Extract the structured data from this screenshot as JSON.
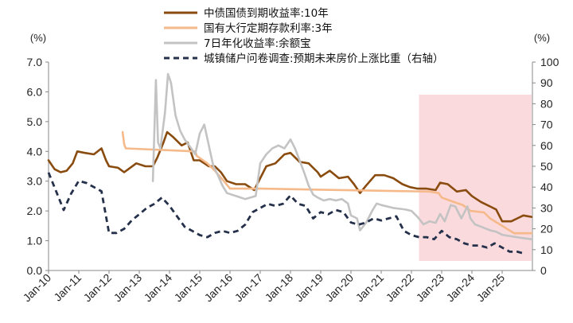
{
  "chart_data": {
    "type": "line",
    "title": "",
    "y_unit_left": "(%)",
    "y_unit_right": "(%)",
    "ylim_left": [
      0,
      7
    ],
    "ylim_right": [
      0,
      100
    ],
    "yticks_left": [
      "0.0",
      "1.0",
      "2.0",
      "3.0",
      "4.0",
      "5.0",
      "6.0",
      "7.0"
    ],
    "yticks_right": [
      "0",
      "10",
      "20",
      "30",
      "40",
      "50",
      "60",
      "70",
      "80",
      "90",
      "100"
    ],
    "x_ticks": [
      "Jan-10",
      "Jan-11",
      "Jan-12",
      "Jan-13",
      "Jan-14",
      "Jan-15",
      "Jan-16",
      "Jan-17",
      "Jan-18",
      "Jan-19",
      "Jan-20",
      "Jan-21",
      "Jan-22",
      "Jan-23",
      "Jan-24",
      "Jan-25"
    ],
    "legend_position": "top-center",
    "shaded_region": {
      "from": 2022.25,
      "to": 2025.97,
      "color": "#fbdadd"
    },
    "series": [
      {
        "name": "中债国债到期收益率:10年",
        "axis": "left",
        "color": "#8a4b0f",
        "style": "solid",
        "points": [
          [
            2010.0,
            3.7
          ],
          [
            2010.2,
            3.4
          ],
          [
            2010.4,
            3.3
          ],
          [
            2010.6,
            3.35
          ],
          [
            2010.8,
            3.6
          ],
          [
            2010.95,
            4.0
          ],
          [
            2011.2,
            3.95
          ],
          [
            2011.5,
            3.9
          ],
          [
            2011.75,
            4.1
          ],
          [
            2011.9,
            3.7
          ],
          [
            2012.0,
            3.5
          ],
          [
            2012.3,
            3.45
          ],
          [
            2012.5,
            3.3
          ],
          [
            2012.7,
            3.45
          ],
          [
            2012.9,
            3.6
          ],
          [
            2013.2,
            3.5
          ],
          [
            2013.45,
            3.5
          ],
          [
            2013.6,
            3.8
          ],
          [
            2013.8,
            4.3
          ],
          [
            2013.92,
            4.65
          ],
          [
            2014.1,
            4.5
          ],
          [
            2014.4,
            4.2
          ],
          [
            2014.6,
            4.3
          ],
          [
            2014.8,
            3.7
          ],
          [
            2015.0,
            3.7
          ],
          [
            2015.3,
            3.5
          ],
          [
            2015.5,
            3.5
          ],
          [
            2015.7,
            3.3
          ],
          [
            2015.9,
            3.0
          ],
          [
            2016.2,
            2.9
          ],
          [
            2016.5,
            2.9
          ],
          [
            2016.8,
            2.7
          ],
          [
            2017.0,
            3.1
          ],
          [
            2017.2,
            3.5
          ],
          [
            2017.5,
            3.6
          ],
          [
            2017.8,
            3.9
          ],
          [
            2018.0,
            3.95
          ],
          [
            2018.3,
            3.65
          ],
          [
            2018.6,
            3.6
          ],
          [
            2018.9,
            3.3
          ],
          [
            2019.0,
            3.15
          ],
          [
            2019.3,
            3.35
          ],
          [
            2019.6,
            3.1
          ],
          [
            2019.9,
            3.15
          ],
          [
            2020.1,
            2.9
          ],
          [
            2020.3,
            2.6
          ],
          [
            2020.5,
            2.85
          ],
          [
            2020.8,
            3.2
          ],
          [
            2021.1,
            3.2
          ],
          [
            2021.4,
            3.1
          ],
          [
            2021.7,
            2.9
          ],
          [
            2021.95,
            2.8
          ],
          [
            2022.2,
            2.75
          ],
          [
            2022.5,
            2.75
          ],
          [
            2022.8,
            2.7
          ],
          [
            2022.95,
            2.95
          ],
          [
            2023.2,
            2.9
          ],
          [
            2023.5,
            2.65
          ],
          [
            2023.8,
            2.7
          ],
          [
            2024.0,
            2.5
          ],
          [
            2024.3,
            2.3
          ],
          [
            2024.6,
            2.15
          ],
          [
            2024.8,
            2.05
          ],
          [
            2025.0,
            1.65
          ],
          [
            2025.3,
            1.65
          ],
          [
            2025.5,
            1.75
          ],
          [
            2025.7,
            1.85
          ],
          [
            2025.97,
            1.8
          ]
        ]
      },
      {
        "name": "国有大行定期存款利率:3年",
        "axis": "left",
        "color": "#f5b98a",
        "style": "solid",
        "points": [
          [
            2012.45,
            4.65
          ],
          [
            2012.5,
            4.25
          ],
          [
            2012.55,
            4.1
          ],
          [
            2014.85,
            4.0
          ],
          [
            2014.9,
            3.85
          ],
          [
            2015.25,
            3.6
          ],
          [
            2015.5,
            3.35
          ],
          [
            2015.8,
            3.0
          ],
          [
            2016.0,
            2.75
          ],
          [
            2017.0,
            2.75
          ],
          [
            2022.6,
            2.65
          ],
          [
            2022.9,
            2.6
          ],
          [
            2023.0,
            2.45
          ],
          [
            2023.4,
            2.3
          ],
          [
            2023.7,
            2.2
          ],
          [
            2023.95,
            2.0
          ],
          [
            2024.4,
            1.95
          ],
          [
            2024.6,
            1.75
          ],
          [
            2025.0,
            1.5
          ],
          [
            2025.4,
            1.25
          ],
          [
            2025.97,
            1.25
          ]
        ]
      },
      {
        "name": "7日年化收益率:余额宝",
        "axis": "left",
        "color": "#c3c3c3",
        "style": "solid",
        "points": [
          [
            2013.45,
            3.0
          ],
          [
            2013.55,
            6.4
          ],
          [
            2013.62,
            4.3
          ],
          [
            2013.7,
            4.1
          ],
          [
            2013.85,
            5.3
          ],
          [
            2013.95,
            6.6
          ],
          [
            2014.05,
            6.3
          ],
          [
            2014.2,
            5.2
          ],
          [
            2014.35,
            4.7
          ],
          [
            2014.5,
            4.4
          ],
          [
            2014.65,
            4.2
          ],
          [
            2014.85,
            3.9
          ],
          [
            2015.0,
            4.6
          ],
          [
            2015.15,
            4.9
          ],
          [
            2015.3,
            4.2
          ],
          [
            2015.45,
            3.5
          ],
          [
            2015.6,
            3.2
          ],
          [
            2015.75,
            2.85
          ],
          [
            2015.9,
            2.6
          ],
          [
            2016.2,
            2.5
          ],
          [
            2016.5,
            2.4
          ],
          [
            2016.85,
            2.5
          ],
          [
            2017.0,
            3.6
          ],
          [
            2017.2,
            3.9
          ],
          [
            2017.4,
            4.1
          ],
          [
            2017.6,
            4.2
          ],
          [
            2017.8,
            4.1
          ],
          [
            2018.0,
            4.4
          ],
          [
            2018.15,
            4.1
          ],
          [
            2018.3,
            3.7
          ],
          [
            2018.45,
            3.3
          ],
          [
            2018.6,
            2.85
          ],
          [
            2018.75,
            2.55
          ],
          [
            2018.9,
            2.45
          ],
          [
            2019.1,
            2.35
          ],
          [
            2019.3,
            2.4
          ],
          [
            2019.5,
            2.35
          ],
          [
            2019.7,
            2.4
          ],
          [
            2019.9,
            2.25
          ],
          [
            2020.0,
            1.85
          ],
          [
            2020.2,
            1.75
          ],
          [
            2020.3,
            1.35
          ],
          [
            2020.5,
            1.6
          ],
          [
            2020.7,
            2.0
          ],
          [
            2020.85,
            2.25
          ],
          [
            2021.0,
            2.2
          ],
          [
            2021.4,
            2.1
          ],
          [
            2021.8,
            2.05
          ],
          [
            2022.0,
            2.0
          ],
          [
            2022.2,
            1.8
          ],
          [
            2022.4,
            1.55
          ],
          [
            2022.6,
            1.65
          ],
          [
            2022.8,
            1.6
          ],
          [
            2022.95,
            1.9
          ],
          [
            2023.1,
            1.65
          ],
          [
            2023.3,
            2.2
          ],
          [
            2023.45,
            2.15
          ],
          [
            2023.65,
            1.75
          ],
          [
            2023.85,
            2.15
          ],
          [
            2023.95,
            1.75
          ],
          [
            2024.1,
            1.55
          ],
          [
            2024.35,
            1.45
          ],
          [
            2024.6,
            1.35
          ],
          [
            2024.8,
            1.3
          ],
          [
            2025.0,
            1.2
          ],
          [
            2025.3,
            1.15
          ],
          [
            2025.6,
            1.1
          ],
          [
            2025.97,
            1.05
          ]
        ]
      },
      {
        "name": "城镇储户问卷调查:预期未来房价上涨比重（右轴）",
        "axis": "right",
        "color": "#25304a",
        "style": "dashed",
        "points": [
          [
            2010.0,
            47
          ],
          [
            2010.25,
            38
          ],
          [
            2010.5,
            29
          ],
          [
            2010.75,
            37
          ],
          [
            2011.0,
            43
          ],
          [
            2011.25,
            42
          ],
          [
            2011.5,
            40
          ],
          [
            2011.75,
            38
          ],
          [
            2012.0,
            18
          ],
          [
            2012.25,
            18
          ],
          [
            2012.5,
            20
          ],
          [
            2012.75,
            24
          ],
          [
            2013.0,
            27
          ],
          [
            2013.25,
            30
          ],
          [
            2013.5,
            32
          ],
          [
            2013.75,
            35
          ],
          [
            2014.0,
            31
          ],
          [
            2014.25,
            26
          ],
          [
            2014.5,
            21
          ],
          [
            2014.75,
            19
          ],
          [
            2015.0,
            17
          ],
          [
            2015.25,
            16
          ],
          [
            2015.5,
            18
          ],
          [
            2015.75,
            19
          ],
          [
            2016.0,
            18
          ],
          [
            2016.25,
            19
          ],
          [
            2016.5,
            22
          ],
          [
            2016.75,
            28
          ],
          [
            2017.0,
            30
          ],
          [
            2017.25,
            32
          ],
          [
            2017.5,
            31
          ],
          [
            2017.75,
            32
          ],
          [
            2018.0,
            36
          ],
          [
            2018.25,
            32
          ],
          [
            2018.5,
            31
          ],
          [
            2018.75,
            25
          ],
          [
            2019.0,
            28
          ],
          [
            2019.25,
            27
          ],
          [
            2019.5,
            29
          ],
          [
            2019.75,
            28
          ],
          [
            2020.0,
            23
          ],
          [
            2020.25,
            22
          ],
          [
            2020.5,
            23
          ],
          [
            2020.75,
            25
          ],
          [
            2021.0,
            24
          ],
          [
            2021.25,
            25
          ],
          [
            2021.5,
            26
          ],
          [
            2021.75,
            19
          ],
          [
            2022.0,
            17
          ],
          [
            2022.25,
            16
          ],
          [
            2022.5,
            16
          ],
          [
            2022.75,
            15
          ],
          [
            2023.0,
            19
          ],
          [
            2023.25,
            16
          ],
          [
            2023.5,
            15
          ],
          [
            2023.75,
            13
          ],
          [
            2024.0,
            12
          ],
          [
            2024.25,
            12
          ],
          [
            2024.5,
            11
          ],
          [
            2024.75,
            13
          ],
          [
            2025.0,
            11
          ],
          [
            2025.25,
            9
          ],
          [
            2025.5,
            9
          ],
          [
            2025.75,
            8
          ]
        ]
      }
    ]
  }
}
